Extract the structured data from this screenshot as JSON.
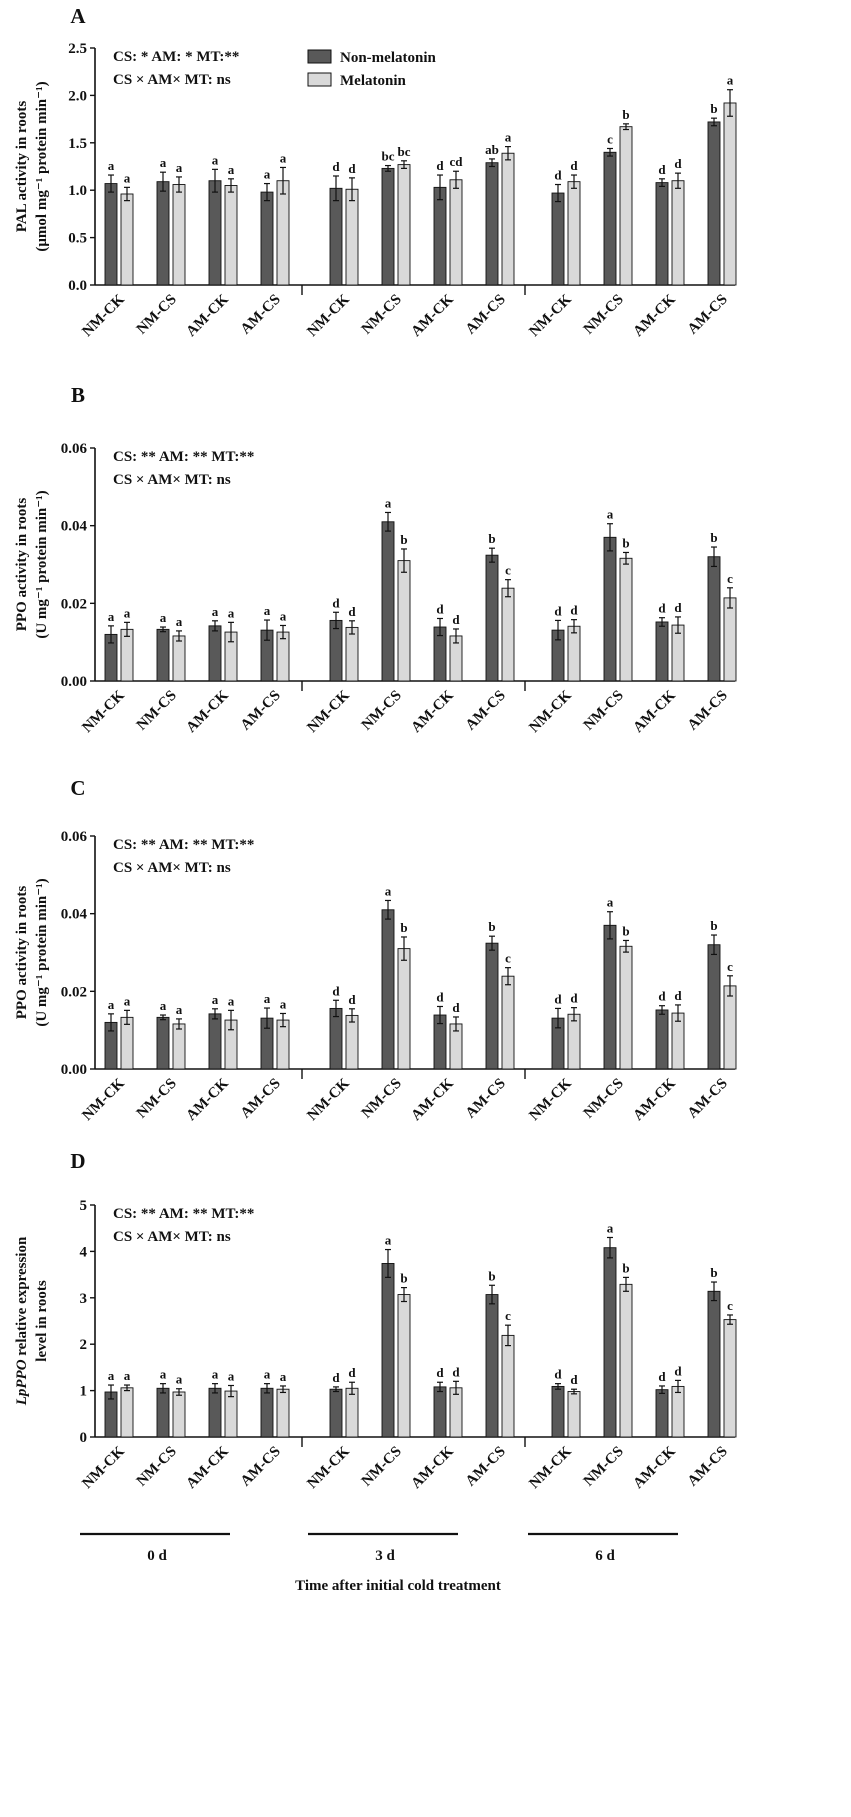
{
  "figure": {
    "x_title": "Time after initial cold treatment",
    "time_groups": [
      "0 d",
      "3 d",
      "6 d"
    ],
    "legend": [
      {
        "label": "Non-melatonin",
        "color": "#595959"
      },
      {
        "label": "Melatonin",
        "color": "#d9d9d9"
      }
    ]
  },
  "chart_data": [
    {
      "panel": "A",
      "type": "bar",
      "ylabel_line1": "PAL activity in roots",
      "ylabel_line2": "(μmol mg⁻¹ protein min⁻¹)",
      "ylim": [
        0,
        2.5
      ],
      "yticks": [
        "0.0",
        "0.5",
        "1.0",
        "1.5",
        "2.0",
        "2.5"
      ],
      "stats_line1": "CS: *  AM: * MT:**",
      "stats_line2": "CS × AM× MT: ns",
      "show_legend": true,
      "show_day_labels": false,
      "categories": [
        "NM-CK",
        "NM-CS",
        "AM-CK",
        "AM-CS",
        "NM-CK",
        "NM-CS",
        "AM-CK",
        "AM-CS",
        "NM-CK",
        "NM-CS",
        "AM-CK",
        "AM-CS"
      ],
      "series": [
        {
          "name": "Non-melatonin",
          "values": [
            1.07,
            1.09,
            1.1,
            0.98,
            1.02,
            1.23,
            1.03,
            1.29,
            0.97,
            1.4,
            1.08,
            1.72
          ],
          "errors": [
            0.09,
            0.1,
            0.12,
            0.09,
            0.13,
            0.03,
            0.13,
            0.04,
            0.09,
            0.04,
            0.04,
            0.04
          ],
          "letters": [
            "a",
            "a",
            "a",
            "a",
            "d",
            "bc",
            "d",
            "ab",
            "d",
            "c",
            "d",
            "b"
          ]
        },
        {
          "name": "Melatonin",
          "values": [
            0.96,
            1.06,
            1.05,
            1.1,
            1.01,
            1.27,
            1.11,
            1.39,
            1.09,
            1.67,
            1.1,
            1.92
          ],
          "errors": [
            0.07,
            0.08,
            0.07,
            0.14,
            0.12,
            0.04,
            0.09,
            0.07,
            0.07,
            0.03,
            0.08,
            0.14
          ],
          "letters": [
            "a",
            "a",
            "a",
            "a",
            "d",
            "bc",
            "cd",
            "a",
            "d",
            "b",
            "d",
            "a"
          ]
        }
      ]
    },
    {
      "panel": "B",
      "type": "bar",
      "ylabel_line1": "PPO activity in roots",
      "ylabel_line2": "(U mg⁻¹ protein min⁻¹)",
      "ylim": [
        0,
        0.06
      ],
      "yticks": [
        "0.00",
        "0.02",
        "0.04",
        "0.06"
      ],
      "stats_line1": "CS: **  AM: ** MT:**",
      "stats_line2": "CS × AM× MT: ns",
      "show_legend": false,
      "show_day_labels": false,
      "categories": [
        "NM-CK",
        "NM-CS",
        "AM-CK",
        "AM-CS",
        "NM-CK",
        "NM-CS",
        "AM-CK",
        "AM-CS",
        "NM-CK",
        "NM-CS",
        "AM-CK",
        "AM-CS"
      ],
      "series": [
        {
          "name": "Non-melatonin",
          "values": [
            0.012,
            0.0133,
            0.0142,
            0.0131,
            0.0156,
            0.041,
            0.0139,
            0.0324,
            0.0131,
            0.037,
            0.0152,
            0.032
          ],
          "errors": [
            0.0022,
            0.0006,
            0.0013,
            0.0026,
            0.0021,
            0.0024,
            0.0022,
            0.0018,
            0.0025,
            0.0035,
            0.0011,
            0.0025
          ],
          "letters": [
            "a",
            "a",
            "a",
            "a",
            "d",
            "a",
            "d",
            "b",
            "d",
            "a",
            "d",
            "b"
          ]
        },
        {
          "name": "Melatonin",
          "values": [
            0.0133,
            0.0116,
            0.0126,
            0.0126,
            0.0138,
            0.031,
            0.0116,
            0.0239,
            0.0141,
            0.0316,
            0.0144,
            0.0214
          ],
          "errors": [
            0.0018,
            0.0013,
            0.0025,
            0.0017,
            0.0017,
            0.003,
            0.0018,
            0.0022,
            0.0017,
            0.0015,
            0.0021,
            0.0026
          ],
          "letters": [
            "a",
            "a",
            "a",
            "a",
            "d",
            "b",
            "d",
            "c",
            "d",
            "b",
            "d",
            "c"
          ]
        }
      ]
    },
    {
      "panel": "C",
      "type": "bar",
      "ylabel_line1": "PPO activity in roots",
      "ylabel_line2": "(U mg⁻¹ protein min⁻¹)",
      "ylim": [
        0,
        0.06
      ],
      "yticks": [
        "0.00",
        "0.02",
        "0.04",
        "0.06"
      ],
      "stats_line1": "CS: **  AM: ** MT:**",
      "stats_line2": "CS × AM× MT: ns",
      "show_legend": false,
      "show_day_labels": false,
      "categories": [
        "NM-CK",
        "NM-CS",
        "AM-CK",
        "AM-CS",
        "NM-CK",
        "NM-CS",
        "AM-CK",
        "AM-CS",
        "NM-CK",
        "NM-CS",
        "AM-CK",
        "AM-CS"
      ],
      "series": [
        {
          "name": "Non-melatonin",
          "values": [
            0.012,
            0.0133,
            0.0142,
            0.0131,
            0.0156,
            0.041,
            0.0139,
            0.0324,
            0.0131,
            0.037,
            0.0152,
            0.032
          ],
          "errors": [
            0.0022,
            0.0006,
            0.0013,
            0.0026,
            0.0021,
            0.0024,
            0.0022,
            0.0018,
            0.0025,
            0.0035,
            0.0011,
            0.0025
          ],
          "letters": [
            "a",
            "a",
            "a",
            "a",
            "d",
            "a",
            "d",
            "b",
            "d",
            "a",
            "d",
            "b"
          ]
        },
        {
          "name": "Melatonin",
          "values": [
            0.0133,
            0.0116,
            0.0126,
            0.0126,
            0.0138,
            0.031,
            0.0116,
            0.0239,
            0.0141,
            0.0316,
            0.0144,
            0.0214
          ],
          "errors": [
            0.0018,
            0.0013,
            0.0025,
            0.0017,
            0.0017,
            0.003,
            0.0018,
            0.0022,
            0.0017,
            0.0015,
            0.0021,
            0.0026
          ],
          "letters": [
            "a",
            "a",
            "a",
            "a",
            "d",
            "b",
            "d",
            "c",
            "d",
            "b",
            "d",
            "c"
          ]
        }
      ]
    },
    {
      "panel": "D",
      "type": "bar",
      "ylabel_italic": "LpPPO",
      "ylabel_line1": " relative expression",
      "ylabel_line2": "level in roots",
      "ylim": [
        0,
        5
      ],
      "yticks": [
        "0",
        "1",
        "2",
        "3",
        "4",
        "5"
      ],
      "stats_line1": "CS: **  AM: ** MT:**",
      "stats_line2": "CS × AM× MT: ns",
      "show_legend": false,
      "show_day_labels": true,
      "categories": [
        "NM-CK",
        "NM-CS",
        "AM-CK",
        "AM-CS",
        "NM-CK",
        "NM-CS",
        "AM-CK",
        "AM-CS",
        "NM-CK",
        "NM-CS",
        "AM-CK",
        "AM-CS"
      ],
      "series": [
        {
          "name": "Non-melatonin",
          "values": [
            0.97,
            1.05,
            1.05,
            1.05,
            1.03,
            3.74,
            1.08,
            3.07,
            1.09,
            4.08,
            1.02,
            3.14
          ],
          "errors": [
            0.15,
            0.1,
            0.1,
            0.1,
            0.05,
            0.3,
            0.1,
            0.2,
            0.06,
            0.22,
            0.08,
            0.2
          ],
          "letters": [
            "a",
            "a",
            "a",
            "a",
            "d",
            "a",
            "d",
            "b",
            "d",
            "a",
            "d",
            "b"
          ]
        },
        {
          "name": "Melatonin",
          "values": [
            1.06,
            0.97,
            0.99,
            1.03,
            1.05,
            3.07,
            1.06,
            2.19,
            0.98,
            3.29,
            1.09,
            2.53
          ],
          "errors": [
            0.06,
            0.07,
            0.12,
            0.07,
            0.13,
            0.15,
            0.14,
            0.22,
            0.05,
            0.15,
            0.13,
            0.1
          ],
          "letters": [
            "a",
            "a",
            "a",
            "a",
            "d",
            "b",
            "d",
            "c",
            "d",
            "b",
            "d",
            "c"
          ]
        }
      ]
    }
  ]
}
